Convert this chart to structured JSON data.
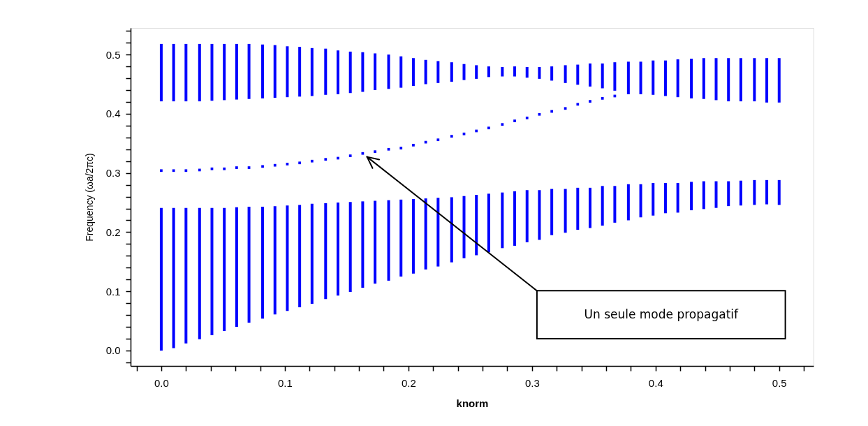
{
  "chart_data": {
    "type": "bar",
    "xlabel": "knorm",
    "ylabel": "Frequency (ωa/2πc)",
    "grid": false,
    "marker": "square",
    "x": [
      0.0,
      0.01,
      0.02,
      0.031,
      0.041,
      0.051,
      0.061,
      0.071,
      0.082,
      0.092,
      0.102,
      0.112,
      0.122,
      0.133,
      0.143,
      0.153,
      0.163,
      0.173,
      0.184,
      0.194,
      0.204,
      0.214,
      0.224,
      0.235,
      0.245,
      0.255,
      0.265,
      0.276,
      0.286,
      0.296,
      0.306,
      0.316,
      0.327,
      0.337,
      0.347,
      0.357,
      0.367,
      0.378,
      0.388,
      0.398,
      0.408,
      0.418,
      0.429,
      0.439,
      0.449,
      0.459,
      0.469,
      0.48,
      0.49,
      0.5
    ],
    "xlim": [
      -0.022,
      0.525
    ],
    "ylim": [
      -0.026,
      0.545
    ],
    "xticks": [
      {
        "value": -0.02,
        "label": null
      },
      {
        "value": 0,
        "label": "0.0"
      },
      {
        "value": 0.02,
        "label": null
      },
      {
        "value": 0.04,
        "label": null
      },
      {
        "value": 0.06,
        "label": null
      },
      {
        "value": 0.08,
        "label": null
      },
      {
        "value": 0.1,
        "label": "0.1"
      },
      {
        "value": 0.12,
        "label": null
      },
      {
        "value": 0.14,
        "label": null
      },
      {
        "value": 0.16,
        "label": null
      },
      {
        "value": 0.18,
        "label": null
      },
      {
        "value": 0.2,
        "label": "0.2"
      },
      {
        "value": 0.22,
        "label": null
      },
      {
        "value": 0.24,
        "label": null
      },
      {
        "value": 0.26,
        "label": null
      },
      {
        "value": 0.28,
        "label": null
      },
      {
        "value": 0.3,
        "label": "0.3"
      },
      {
        "value": 0.32,
        "label": null
      },
      {
        "value": 0.34,
        "label": null
      },
      {
        "value": 0.36,
        "label": null
      },
      {
        "value": 0.38,
        "label": null
      },
      {
        "value": 0.4,
        "label": "0.4"
      },
      {
        "value": 0.42,
        "label": null
      },
      {
        "value": 0.44,
        "label": null
      },
      {
        "value": 0.46,
        "label": null
      },
      {
        "value": 0.48,
        "label": null
      },
      {
        "value": 0.5,
        "label": "0.5"
      },
      {
        "value": 0.52,
        "label": null
      }
    ],
    "yticks": [
      {
        "value": -0.02,
        "label": null
      },
      {
        "value": 0,
        "label": "0.0"
      },
      {
        "value": 0.02,
        "label": null
      },
      {
        "value": 0.04,
        "label": null
      },
      {
        "value": 0.06,
        "label": null
      },
      {
        "value": 0.08,
        "label": null
      },
      {
        "value": 0.1,
        "label": "0.1"
      },
      {
        "value": 0.12,
        "label": null
      },
      {
        "value": 0.14,
        "label": null
      },
      {
        "value": 0.16,
        "label": null
      },
      {
        "value": 0.18,
        "label": null
      },
      {
        "value": 0.2,
        "label": "0.2"
      },
      {
        "value": 0.22,
        "label": null
      },
      {
        "value": 0.24,
        "label": null
      },
      {
        "value": 0.26,
        "label": null
      },
      {
        "value": 0.28,
        "label": null
      },
      {
        "value": 0.3,
        "label": "0.3"
      },
      {
        "value": 0.32,
        "label": null
      },
      {
        "value": 0.34,
        "label": null
      },
      {
        "value": 0.36,
        "label": null
      },
      {
        "value": 0.38,
        "label": null
      },
      {
        "value": 0.4,
        "label": "0.4"
      },
      {
        "value": 0.42,
        "label": null
      },
      {
        "value": 0.44,
        "label": null
      },
      {
        "value": 0.46,
        "label": null
      },
      {
        "value": 0.48,
        "label": null
      },
      {
        "value": 0.5,
        "label": "0.5"
      },
      {
        "value": 0.52,
        "label": null
      },
      {
        "value": 0.54,
        "label": null
      }
    ],
    "series": [
      {
        "color": "#0000ff",
        "base": [
          0.0,
          0.004,
          0.012,
          0.019,
          0.026,
          0.033,
          0.04,
          0.047,
          0.054,
          0.061,
          0.067,
          0.073,
          0.079,
          0.087,
          0.093,
          0.099,
          0.106,
          0.113,
          0.118,
          0.125,
          0.13,
          0.137,
          0.142,
          0.149,
          0.156,
          0.161,
          0.166,
          0.173,
          0.177,
          0.183,
          0.187,
          0.195,
          0.199,
          0.204,
          0.207,
          0.211,
          0.216,
          0.22,
          0.225,
          0.228,
          0.232,
          0.233,
          0.237,
          0.239,
          0.241,
          0.244,
          0.245,
          0.246,
          0.247,
          0.246
        ],
        "values": [
          0.241,
          0.237,
          0.229,
          0.222,
          0.215,
          0.208,
          0.202,
          0.196,
          0.189,
          0.183,
          0.178,
          0.173,
          0.169,
          0.162,
          0.157,
          0.152,
          0.146,
          0.14,
          0.136,
          0.13,
          0.126,
          0.12,
          0.116,
          0.11,
          0.105,
          0.102,
          0.099,
          0.094,
          0.092,
          0.088,
          0.084,
          0.078,
          0.074,
          0.071,
          0.068,
          0.067,
          0.062,
          0.061,
          0.056,
          0.055,
          0.051,
          0.05,
          0.048,
          0.047,
          0.045,
          0.042,
          0.042,
          0.042,
          0.041,
          0.042
        ]
      },
      {
        "color": "#0000ff",
        "base": [
          0.421,
          0.421,
          0.421,
          0.421,
          0.422,
          0.423,
          0.424,
          0.425,
          0.426,
          0.427,
          0.428,
          0.429,
          0.43,
          0.432,
          0.433,
          0.435,
          0.437,
          0.44,
          0.442,
          0.444,
          0.447,
          0.45,
          0.452,
          0.454,
          0.457,
          0.459,
          0.462,
          0.463,
          0.463,
          0.461,
          0.459,
          0.456,
          0.452,
          0.449,
          0.446,
          0.443,
          0.439,
          0.433,
          0.433,
          0.432,
          0.43,
          0.428,
          0.426,
          0.425,
          0.423,
          0.421,
          0.421,
          0.421,
          0.419,
          0.419
        ],
        "values": [
          0.097,
          0.097,
          0.097,
          0.097,
          0.096,
          0.095,
          0.094,
          0.093,
          0.091,
          0.089,
          0.086,
          0.084,
          0.081,
          0.078,
          0.074,
          0.07,
          0.067,
          0.062,
          0.058,
          0.053,
          0.047,
          0.041,
          0.037,
          0.033,
          0.027,
          0.023,
          0.018,
          0.016,
          0.017,
          0.018,
          0.02,
          0.024,
          0.03,
          0.034,
          0.039,
          0.042,
          0.048,
          0.055,
          0.055,
          0.058,
          0.06,
          0.064,
          0.067,
          0.069,
          0.071,
          0.073,
          0.073,
          0.073,
          0.075,
          0.075
        ]
      },
      {
        "type": "scatter",
        "color": "#0000ff",
        "values": [
          0.304,
          0.304,
          0.304,
          0.305,
          0.307,
          0.307,
          0.309,
          0.309,
          0.311,
          0.313,
          0.315,
          0.317,
          0.32,
          0.323,
          0.325,
          0.329,
          0.333,
          0.336,
          0.34,
          0.342,
          0.347,
          0.352,
          0.356,
          0.362,
          0.366,
          0.371,
          0.376,
          0.382,
          0.388,
          0.393,
          0.399,
          0.404,
          0.409,
          0.416,
          0.421,
          0.426,
          0.43,
          null,
          null,
          null,
          null,
          null,
          null,
          null,
          null,
          null,
          null,
          null,
          null,
          null
        ]
      }
    ],
    "annotations": [
      "Un seule mode propagatif"
    ]
  }
}
